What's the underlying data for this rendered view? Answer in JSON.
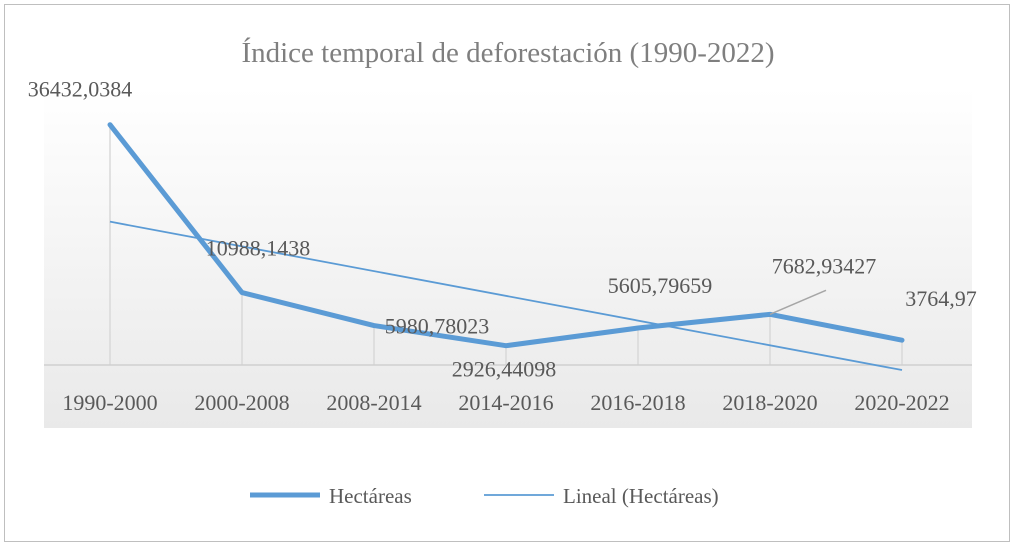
{
  "chart_data": {
    "type": "line",
    "title": "Índice temporal de deforestación (1990-2022)",
    "xlabel": "",
    "ylabel": "",
    "categories": [
      "1990-2000",
      "2000-2008",
      "2008-2014",
      "2014-2016",
      "2016-2018",
      "2018-2020",
      "2020-2022"
    ],
    "series": [
      {
        "name": "Hectáreas",
        "values": [
          36432.0384,
          10988.1438,
          5980.78023,
          2926.44098,
          5605.79659,
          7682.93427,
          3764.97
        ],
        "labels": [
          "36432,0384",
          "10988,1438",
          "5980,78023",
          "2926,44098",
          "5605,79659",
          "7682,93427",
          "3764,97"
        ],
        "color": "#5b9bd5"
      }
    ],
    "trendline": {
      "name": "Lineal (Hectáreas)",
      "type": "linear",
      "color": "#5b9bd5"
    },
    "ylim": [
      0,
      42000
    ],
    "grid": false,
    "legend": "bottom"
  }
}
